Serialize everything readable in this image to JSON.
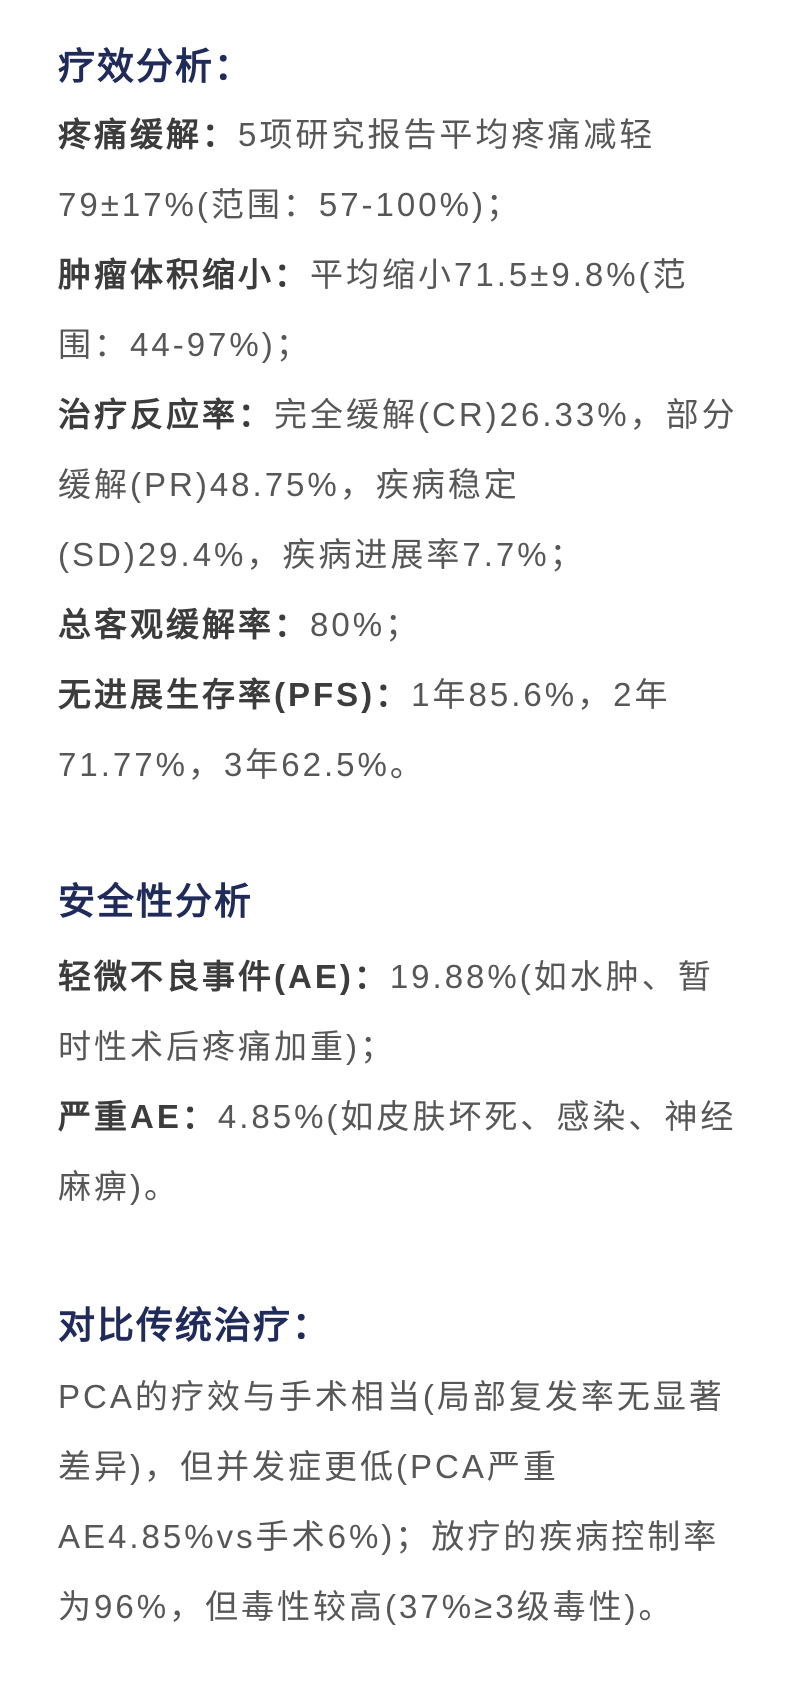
{
  "colors": {
    "heading": "#202b5a",
    "label": "#3c3c3c",
    "body": "#575757",
    "background": "#ffffff"
  },
  "sections": [
    {
      "heading": "疗效分析：",
      "paragraphs": [
        {
          "label": "疼痛缓解：",
          "text": "5项研究报告平均疼痛减轻79±17%(范围：57-100%)；"
        },
        {
          "label": "肿瘤体积缩小：",
          "text": "平均缩小71.5±9.8%(范围：44-97%)；"
        },
        {
          "label": "治疗反应率：",
          "text": "完全缓解(CR)26.33%，部分缓解(PR)48.75%，疾病稳定(SD)29.4%，疾病进展率7.7%；"
        },
        {
          "label": "总客观缓解率：",
          "text": "80%；"
        },
        {
          "label": "无进展生存率(PFS)：",
          "text": "1年85.6%，2年71.77%，3年62.5%。"
        }
      ]
    },
    {
      "heading": "安全性分析",
      "paragraphs": [
        {
          "label": "轻微不良事件(AE)：",
          "text": "19.88%(如水肿、暂时性术后疼痛加重)；"
        },
        {
          "label": "严重AE：",
          "text": "4.85%(如皮肤坏死、感染、神经麻痹)。"
        }
      ]
    },
    {
      "heading": "对比传统治疗：",
      "paragraphs": [
        {
          "label": "",
          "text": "PCA的疗效与手术相当(局部复发率无显著差异)，但并发症更低(PCA严重AE4.85%vs手术6%)；放疗的疾病控制率为96%，但毒性较高(37%≥3级毒性)。"
        }
      ]
    }
  ]
}
